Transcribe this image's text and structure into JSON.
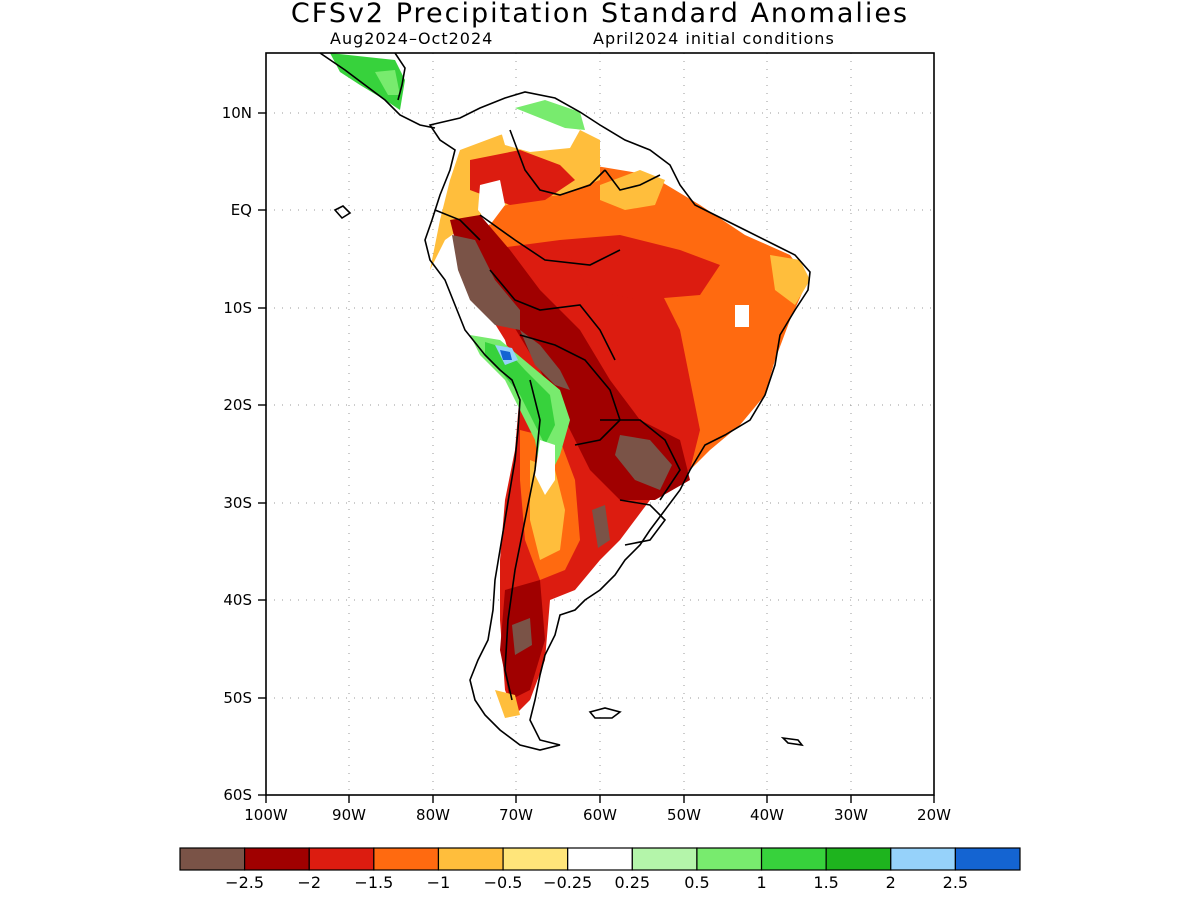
{
  "title": "CFSv2 Precipitation Standard Anomalies",
  "subtitle_period": "Aug2024–Oct2024",
  "subtitle_init": "April2024 initial conditions",
  "lat_labels": [
    "10N",
    "EQ",
    "10S",
    "20S",
    "30S",
    "40S",
    "50S",
    "60S"
  ],
  "lon_labels": [
    "100W",
    "90W",
    "80W",
    "70W",
    "60W",
    "50W",
    "40W",
    "30W",
    "20W"
  ],
  "colorbar": {
    "colors": [
      "#7a5347",
      "#a00000",
      "#dc1c10",
      "#ff6a10",
      "#ffbe3c",
      "#ffe57a",
      "#ffffff",
      "#b4f5aa",
      "#78eb6e",
      "#37d23c",
      "#1eb41e",
      "#96d2fa",
      "#1464d2"
    ],
    "labels": [
      "−2.5",
      "−2",
      "−1.5",
      "−1",
      "−0.5",
      "−0.25",
      "0.25",
      "0.5",
      "1",
      "1.5",
      "2",
      "2.5"
    ]
  }
}
